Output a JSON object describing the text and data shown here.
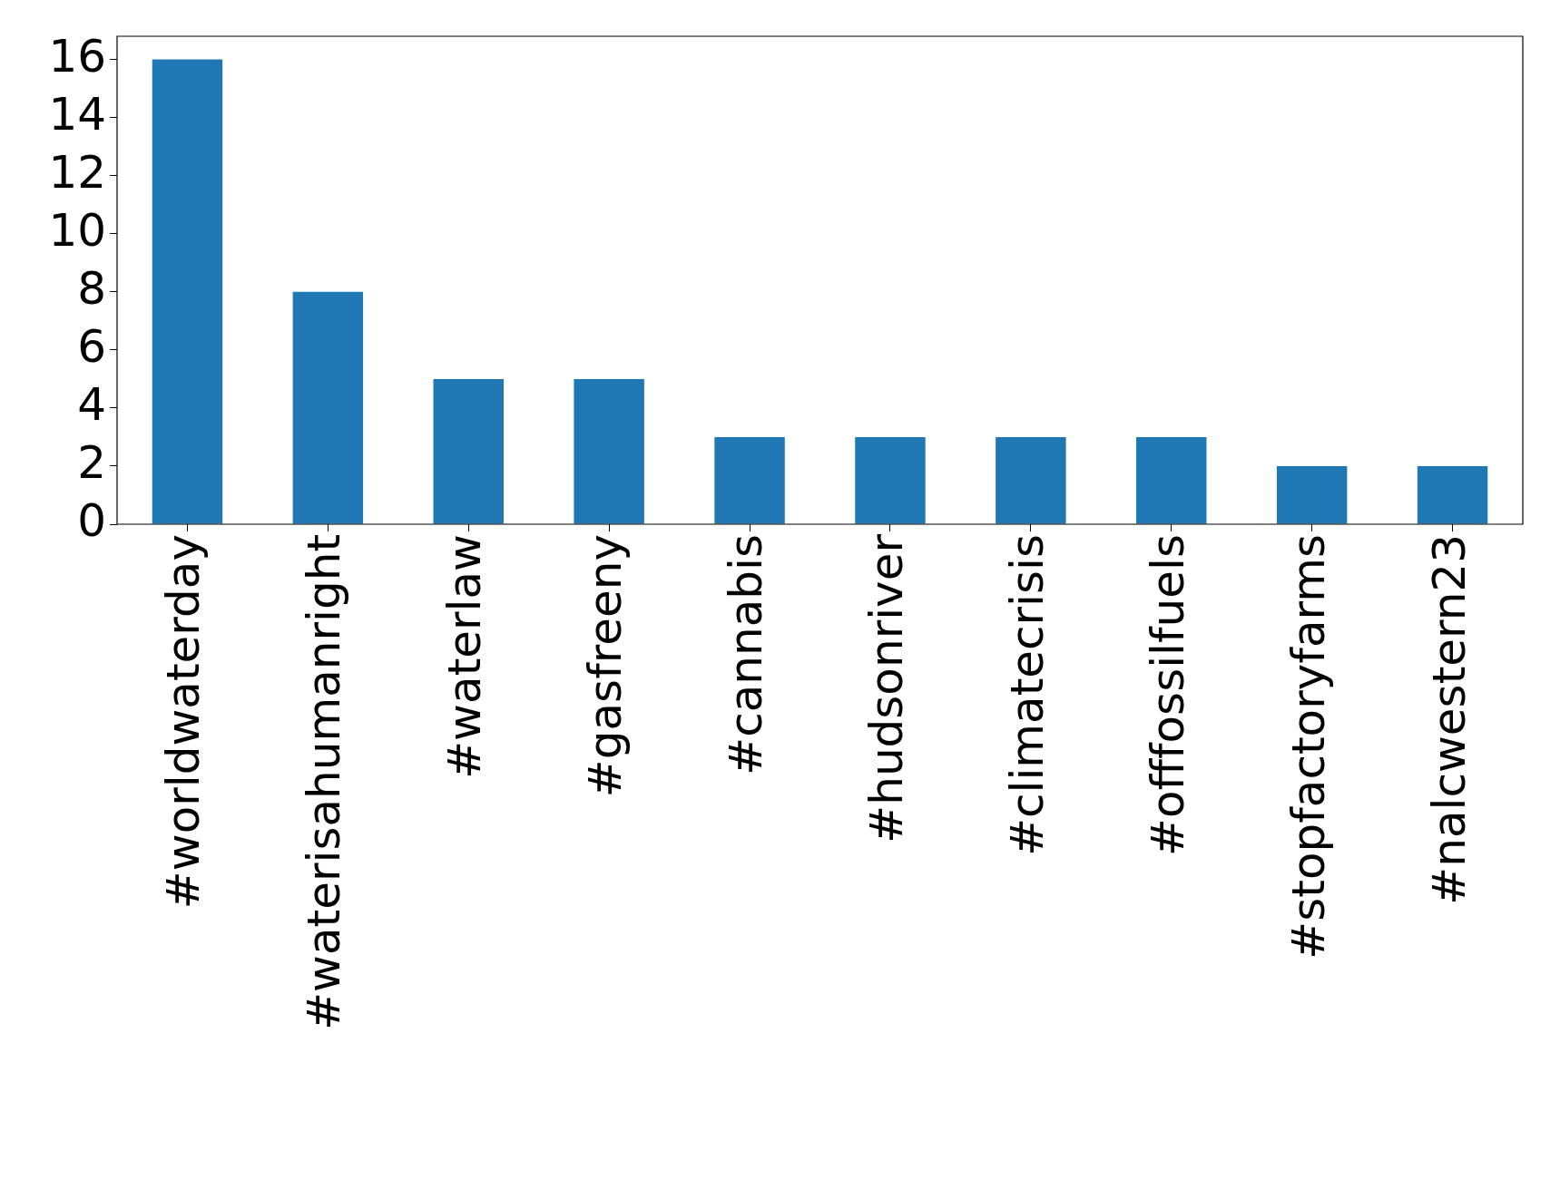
{
  "chart_data": {
    "type": "bar",
    "categories": [
      "#worldwaterday",
      "#waterisahumanright",
      "#waterlaw",
      "#gasfreeny",
      "#cannabis",
      "#hudsonriver",
      "#climatecrisis",
      "#offfossilfuels",
      "#stopfactoryfarms",
      "#nalcwestern23"
    ],
    "values": [
      16,
      8,
      5,
      5,
      3,
      3,
      3,
      3,
      2,
      2
    ],
    "color": "#1f77b4",
    "ylim": [
      0,
      16.8
    ],
    "yticks": [
      0,
      2,
      4,
      6,
      8,
      10,
      12,
      14,
      16
    ],
    "grid": false,
    "legend": false
  }
}
